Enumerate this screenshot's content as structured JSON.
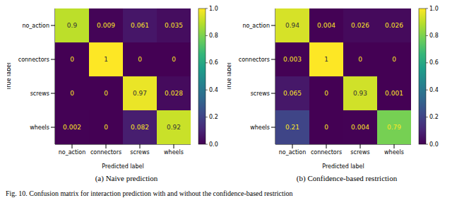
{
  "chart_data": [
    {
      "type": "heatmap",
      "title": "(a) Naive prediction",
      "x_label": "Predicted label",
      "y_label": "True label",
      "categories": [
        "no_action",
        "connectors",
        "screws",
        "wheels"
      ],
      "row_categories": [
        "no_action",
        "connectors",
        "screws",
        "wheels"
      ],
      "cells": [
        [
          0.9,
          0.009,
          0.061,
          0.035
        ],
        [
          0,
          1,
          0,
          0
        ],
        [
          0,
          0,
          0.97,
          0.028
        ],
        [
          0.002,
          0,
          0.082,
          0.92
        ]
      ],
      "colorbar_range": [
        0,
        1
      ],
      "colorbar_ticks": [
        {
          "value": 0,
          "label": "0.0"
        },
        {
          "value": 0.2,
          "label": "0.2"
        },
        {
          "value": 0.4,
          "label": "0.4"
        },
        {
          "value": 0.6,
          "label": "0.6"
        },
        {
          "value": 0.8,
          "label": "0.8"
        },
        {
          "value": 1,
          "label": "1.0"
        }
      ]
    },
    {
      "type": "heatmap",
      "title": "(b) Confidence-based restriction",
      "x_label": "Predicted label",
      "y_label": "True label",
      "categories": [
        "no_action",
        "connectors",
        "screws",
        "wheels"
      ],
      "row_categories": [
        "no_action",
        "connectors",
        "screws",
        "wheels"
      ],
      "cells": [
        [
          0.94,
          0.004,
          0.026,
          0.026
        ],
        [
          0.003,
          1,
          0,
          0
        ],
        [
          0.065,
          0,
          0.93,
          0.001
        ],
        [
          0.21,
          0,
          0.004,
          0.79
        ]
      ],
      "colorbar_range": [
        0,
        1
      ],
      "colorbar_ticks": [
        {
          "value": 0,
          "label": "0.0"
        },
        {
          "value": 0.2,
          "label": "0.2"
        },
        {
          "value": 0.4,
          "label": "0.4"
        },
        {
          "value": 0.6,
          "label": "0.6"
        },
        {
          "value": 0.8,
          "label": "0.8"
        },
        {
          "value": 1,
          "label": "1.0"
        }
      ]
    }
  ],
  "caption": "Fig. 10.   Confusion matrix for interaction prediction with and without the confidence-based restriction"
}
